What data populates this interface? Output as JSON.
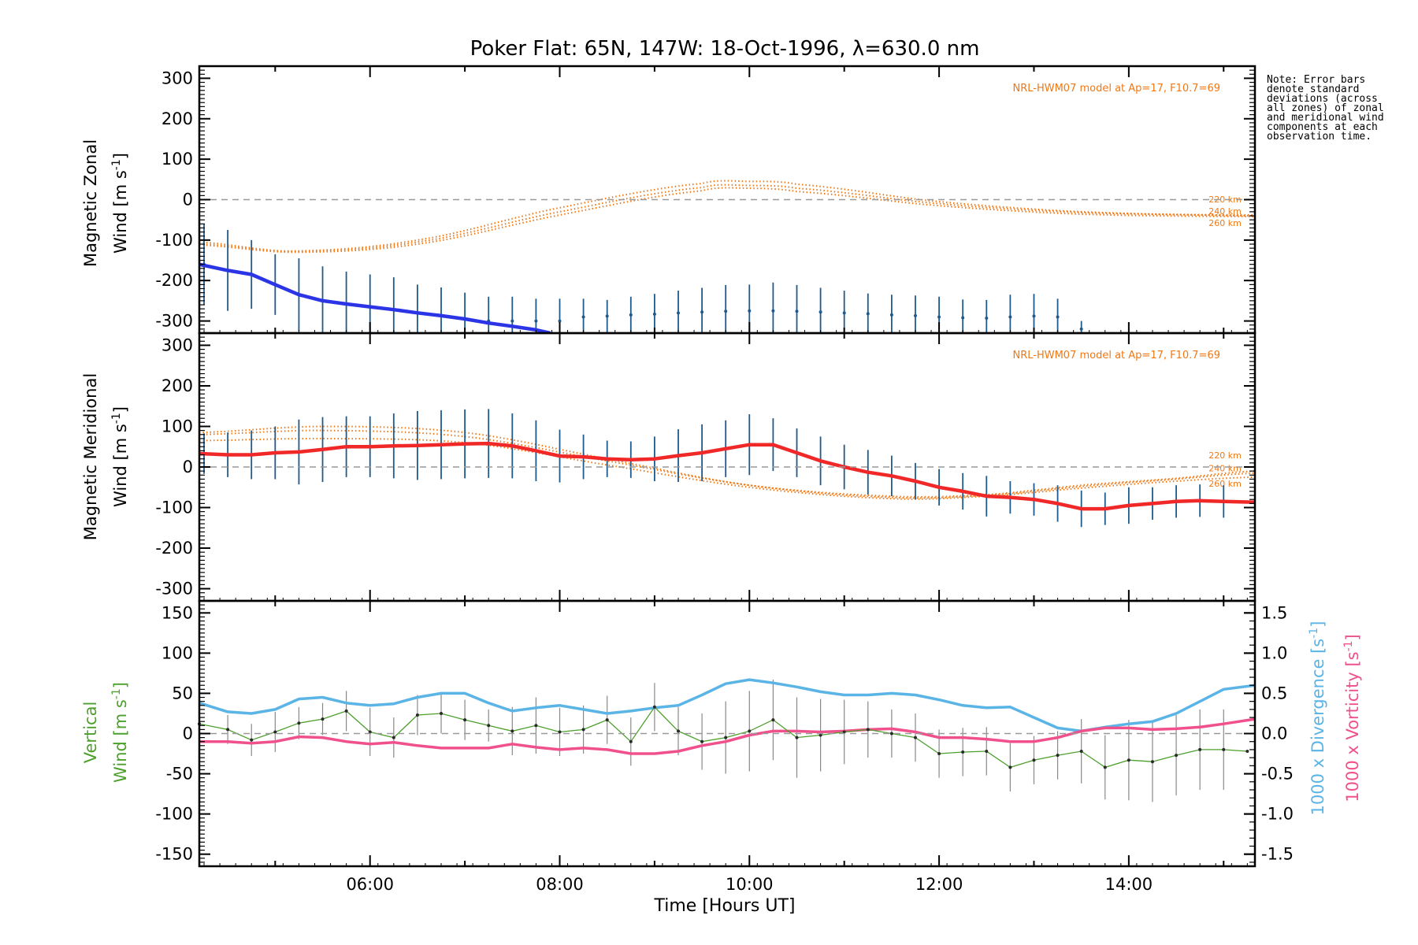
{
  "title": "Poker Flat: 65N, 147W: 18-Oct-1996, λ=630.0 nm",
  "note": "Note: Error bars denote standard deviations (across all zones) of zonal and meridional wind components at each observation time.",
  "xlabel": "Time [Hours UT]",
  "x_ticks": [
    "06:00",
    "08:00",
    "10:00",
    "12:00",
    "14:00"
  ],
  "colors": {
    "zonal": "#2b35e6",
    "meridional": "#f02828",
    "model": "#f07814",
    "errorbar": "#1e5a8c",
    "vertical": "#4ca02c",
    "divergence": "#5ab4e6",
    "vorticity": "#f0508c",
    "zeroline": "#999999"
  },
  "chart_data": [
    {
      "type": "line",
      "panel": "zonal",
      "ylabel": "Magnetic Zonal Wind [m s⁻¹]",
      "ylabel_line1": "Magnetic Zonal",
      "ylabel_line2": "Wind [m s",
      "ylabel_sup": "-1",
      "ylabel_end": "]",
      "ylim": [
        -330,
        330
      ],
      "yticks": [
        300,
        200,
        100,
        0,
        -100,
        -200,
        -300
      ],
      "xlim": [
        4.2,
        15.33
      ],
      "model_label": "NRL-HWM07 model at Ap=17, F10.7=69",
      "model_altitudes": [
        "220 km",
        "240 km",
        "260 km"
      ],
      "series": {
        "name": "zonal wind",
        "x": [
          4.2,
          4.5,
          4.75,
          5.0,
          5.25,
          5.5,
          5.75,
          6.0,
          6.25,
          6.5,
          6.75,
          7.0,
          7.25,
          7.5,
          7.75,
          7.9
        ],
        "y": [
          -160,
          -175,
          -185,
          -210,
          -235,
          -250,
          -258,
          -265,
          -272,
          -280,
          -287,
          -295,
          -305,
          -313,
          -322,
          -330
        ]
      },
      "errorbars": {
        "x": [
          4.25,
          4.5,
          4.75,
          5.0,
          5.25,
          5.5,
          5.75,
          6.0,
          6.25,
          6.5,
          6.75,
          7.0,
          7.25,
          7.5,
          7.75,
          8.0,
          8.25,
          8.5,
          8.75,
          9.0,
          9.25,
          9.5,
          9.75,
          10.0,
          10.25,
          10.5,
          10.75,
          11.0,
          11.25,
          11.5,
          11.75,
          12.0,
          12.25,
          12.5,
          12.75,
          13.0,
          13.25,
          13.5
        ],
        "y": [
          -160,
          -175,
          -185,
          -210,
          -235,
          -250,
          -258,
          -265,
          -272,
          -280,
          -287,
          -295,
          -300,
          -300,
          -300,
          -300,
          -290,
          -288,
          -285,
          -283,
          -280,
          -278,
          -276,
          -275,
          -275,
          -276,
          -278,
          -280,
          -282,
          -285,
          -287,
          -290,
          -292,
          -293,
          -290,
          -288,
          -290,
          -320
        ],
        "err": [
          100,
          100,
          85,
          75,
          90,
          85,
          80,
          80,
          80,
          70,
          70,
          65,
          60,
          60,
          55,
          55,
          45,
          40,
          45,
          50,
          55,
          60,
          65,
          65,
          70,
          65,
          60,
          55,
          50,
          50,
          50,
          50,
          45,
          45,
          55,
          55,
          45,
          20
        ]
      },
      "model": [
        {
          "altitude": "220 km",
          "x": [
            4.2,
            5.2,
            6.5,
            8.0,
            9.5,
            10.0,
            10.5,
            12.0,
            13.5,
            15.33
          ],
          "y": [
            -105,
            -128,
            -105,
            -30,
            30,
            35,
            28,
            -10,
            -32,
            -38
          ]
        },
        {
          "altitude": "240 km",
          "x": [
            4.2,
            5.2,
            6.5,
            8.0,
            9.5,
            10.0,
            10.5,
            12.0,
            13.5,
            15.33
          ],
          "y": [
            -110,
            -127,
            -100,
            -20,
            40,
            45,
            38,
            -5,
            -30,
            -40
          ]
        },
        {
          "altitude": "260 km",
          "x": [
            4.2,
            5.2,
            6.5,
            8.0,
            9.5,
            10.0,
            10.5,
            12.0,
            13.5,
            15.33
          ],
          "y": [
            -112,
            -130,
            -110,
            -38,
            22,
            28,
            20,
            -15,
            -36,
            -42
          ]
        }
      ]
    },
    {
      "type": "line",
      "panel": "meridional",
      "ylabel": "Magnetic Meridional Wind [m s⁻¹]",
      "ylabel_line1": "Magnetic Meridional",
      "ylabel_line2": "Wind [m s",
      "ylabel_sup": "-1",
      "ylabel_end": "]",
      "ylim": [
        -330,
        330
      ],
      "yticks": [
        300,
        200,
        100,
        0,
        -100,
        -200,
        -300
      ],
      "xlim": [
        4.2,
        15.33
      ],
      "model_label": "NRL-HWM07 model at Ap=17, F10.7=69",
      "model_altitudes": [
        "220 km",
        "240 km",
        "260 km"
      ],
      "series": {
        "name": "meridional wind",
        "x": [
          4.2,
          4.5,
          4.75,
          5.0,
          5.25,
          5.5,
          5.75,
          6.0,
          6.25,
          6.5,
          6.75,
          7.0,
          7.25,
          7.5,
          7.75,
          8.0,
          8.25,
          8.5,
          8.75,
          9.0,
          9.25,
          9.5,
          9.75,
          10.0,
          10.25,
          10.5,
          10.75,
          11.0,
          11.25,
          11.5,
          11.75,
          12.0,
          12.25,
          12.5,
          12.75,
          13.0,
          13.25,
          13.5,
          13.75,
          14.0,
          14.25,
          14.5,
          14.75,
          15.0,
          15.33
        ],
        "y": [
          33,
          30,
          30,
          35,
          37,
          43,
          50,
          50,
          52,
          53,
          55,
          57,
          58,
          52,
          40,
          27,
          25,
          20,
          18,
          20,
          28,
          35,
          45,
          55,
          55,
          35,
          15,
          0,
          -13,
          -22,
          -35,
          -50,
          -60,
          -72,
          -75,
          -80,
          -90,
          -103,
          -103,
          -95,
          -90,
          -85,
          -83,
          -85,
          -87
        ]
      },
      "errorbars": {
        "x": [
          4.25,
          4.5,
          4.75,
          5.0,
          5.25,
          5.5,
          5.75,
          6.0,
          6.25,
          6.5,
          6.75,
          7.0,
          7.25,
          7.5,
          7.75,
          8.0,
          8.25,
          8.5,
          8.75,
          9.0,
          9.25,
          9.5,
          9.75,
          10.0,
          10.25,
          10.5,
          10.75,
          11.0,
          11.25,
          11.5,
          11.75,
          12.0,
          12.25,
          12.5,
          12.75,
          13.0,
          13.25,
          13.5,
          13.75,
          14.0,
          14.25,
          14.5,
          14.75,
          15.0
        ],
        "y": [
          33,
          30,
          30,
          35,
          37,
          43,
          50,
          50,
          52,
          53,
          55,
          57,
          58,
          52,
          40,
          27,
          25,
          20,
          18,
          20,
          28,
          35,
          45,
          55,
          55,
          35,
          15,
          0,
          -13,
          -22,
          -35,
          -50,
          -60,
          -72,
          -75,
          -80,
          -90,
          -103,
          -103,
          -95,
          -90,
          -85,
          -83,
          -85
        ],
        "err": [
          50,
          55,
          60,
          65,
          80,
          80,
          75,
          75,
          80,
          85,
          85,
          85,
          85,
          80,
          75,
          65,
          55,
          45,
          45,
          55,
          65,
          70,
          70,
          75,
          65,
          60,
          60,
          55,
          55,
          50,
          45,
          45,
          45,
          50,
          40,
          40,
          45,
          45,
          40,
          45,
          40,
          40,
          40,
          40
        ]
      },
      "model": [
        {
          "altitude": "220 km",
          "x": [
            4.2,
            5.5,
            7.0,
            8.5,
            10.0,
            11.5,
            12.5,
            13.5,
            14.5,
            15.33
          ],
          "y": [
            80,
            90,
            75,
            15,
            -45,
            -72,
            -68,
            -45,
            -28,
            -10
          ]
        },
        {
          "altitude": "240 km",
          "x": [
            4.2,
            5.5,
            7.0,
            8.5,
            10.0,
            11.5,
            12.5,
            13.5,
            14.5,
            15.33
          ],
          "y": [
            85,
            100,
            85,
            20,
            -45,
            -75,
            -70,
            -48,
            -30,
            -15
          ]
        },
        {
          "altitude": "260 km",
          "x": [
            4.2,
            5.5,
            7.0,
            8.5,
            10.0,
            11.5,
            12.5,
            13.5,
            14.5,
            15.33
          ],
          "y": [
            65,
            70,
            60,
            5,
            -50,
            -78,
            -72,
            -52,
            -35,
            -25
          ]
        }
      ]
    },
    {
      "type": "line",
      "panel": "vertical",
      "ylabel": "Vertical Wind [m s⁻¹]",
      "ylabel_line1": "Vertical",
      "ylabel_line2": "Wind [m s",
      "ylabel_sup": "-1",
      "ylabel_end": "]",
      "ylim": [
        -165,
        165
      ],
      "yticks": [
        150,
        100,
        50,
        0,
        -50,
        -100,
        -150
      ],
      "xlim": [
        4.2,
        15.33
      ],
      "y2label_div": "1000 x Divergence [s⁻¹]",
      "y2label_div_main": "1000 x Divergence [s",
      "y2label_vor": "1000 x Vorticity [s⁻¹]",
      "y2label_vor_main": "1000 x Vorticity [s",
      "y2_sup": "-1",
      "y2_end": "]",
      "y2lim": [
        -1.65,
        1.65
      ],
      "y2ticks": [
        "1.5",
        "1.0",
        "0.5",
        "0.0",
        "-0.5",
        "-1.0",
        "-1.5"
      ],
      "vertical": {
        "x": [
          4.2,
          4.5,
          4.75,
          5.0,
          5.25,
          5.5,
          5.75,
          6.0,
          6.25,
          6.5,
          6.75,
          7.0,
          7.25,
          7.5,
          7.75,
          8.0,
          8.25,
          8.5,
          8.75,
          9.0,
          9.25,
          9.5,
          9.75,
          10.0,
          10.25,
          10.5,
          10.75,
          11.0,
          11.25,
          11.5,
          11.75,
          12.0,
          12.25,
          12.5,
          12.75,
          13.0,
          13.25,
          13.5,
          13.75,
          14.0,
          14.25,
          14.5,
          14.75,
          15.0,
          15.25
        ],
        "y": [
          12,
          5,
          -8,
          2,
          13,
          18,
          28,
          2,
          -5,
          23,
          25,
          17,
          10,
          3,
          10,
          2,
          5,
          17,
          -10,
          33,
          3,
          -10,
          -5,
          3,
          17,
          -5,
          -2,
          2,
          5,
          0,
          -5,
          -25,
          -23,
          -22,
          -42,
          -33,
          -27,
          -22,
          -42,
          -33,
          -35,
          -27,
          -20,
          -20,
          -22
        ],
        "err": [
          0,
          18,
          20,
          25,
          20,
          20,
          25,
          30,
          25,
          25,
          25,
          25,
          20,
          30,
          35,
          30,
          30,
          30,
          30,
          30,
          30,
          35,
          45,
          50,
          50,
          50,
          45,
          40,
          35,
          30,
          30,
          30,
          30,
          30,
          30,
          30,
          30,
          40,
          40,
          50,
          50,
          50,
          50,
          50,
          0
        ]
      },
      "divergence": {
        "x": [
          4.2,
          4.5,
          4.75,
          5.0,
          5.25,
          5.5,
          5.75,
          6.0,
          6.25,
          6.5,
          6.75,
          7.0,
          7.25,
          7.5,
          7.75,
          8.0,
          8.25,
          8.5,
          8.75,
          9.0,
          9.25,
          9.5,
          9.75,
          10.0,
          10.25,
          10.5,
          10.75,
          11.0,
          11.25,
          11.5,
          11.75,
          12.0,
          12.25,
          12.5,
          12.75,
          13.0,
          13.25,
          13.5,
          13.75,
          14.0,
          14.25,
          14.5,
          14.75,
          15.0,
          15.33
        ],
        "y": [
          0.38,
          0.27,
          0.25,
          0.3,
          0.43,
          0.45,
          0.38,
          0.35,
          0.37,
          0.45,
          0.5,
          0.5,
          0.38,
          0.28,
          0.32,
          0.35,
          0.3,
          0.25,
          0.28,
          0.32,
          0.35,
          0.48,
          0.62,
          0.67,
          0.63,
          0.58,
          0.52,
          0.48,
          0.48,
          0.5,
          0.48,
          0.42,
          0.35,
          0.32,
          0.33,
          0.2,
          0.07,
          0.03,
          0.08,
          0.12,
          0.15,
          0.25,
          0.4,
          0.55,
          0.6
        ]
      },
      "vorticity": {
        "x": [
          4.2,
          4.5,
          4.75,
          5.0,
          5.25,
          5.5,
          5.75,
          6.0,
          6.25,
          6.5,
          6.75,
          7.0,
          7.25,
          7.5,
          7.75,
          8.0,
          8.25,
          8.5,
          8.75,
          9.0,
          9.25,
          9.5,
          9.75,
          10.0,
          10.25,
          10.5,
          10.75,
          11.0,
          11.25,
          11.5,
          11.75,
          12.0,
          12.25,
          12.5,
          12.75,
          13.0,
          13.25,
          13.5,
          13.75,
          14.0,
          14.25,
          14.5,
          14.75,
          15.0,
          15.33
        ],
        "y": [
          -0.1,
          -0.1,
          -0.12,
          -0.1,
          -0.04,
          -0.05,
          -0.1,
          -0.13,
          -0.11,
          -0.15,
          -0.18,
          -0.18,
          -0.18,
          -0.13,
          -0.17,
          -0.2,
          -0.18,
          -0.2,
          -0.25,
          -0.25,
          -0.22,
          -0.15,
          -0.1,
          -0.02,
          0.03,
          0.03,
          0.02,
          0.03,
          0.05,
          0.06,
          0.02,
          -0.05,
          -0.05,
          -0.07,
          -0.1,
          -0.1,
          -0.05,
          0.03,
          0.07,
          0.07,
          0.05,
          0.06,
          0.08,
          0.12,
          0.18
        ]
      }
    }
  ]
}
